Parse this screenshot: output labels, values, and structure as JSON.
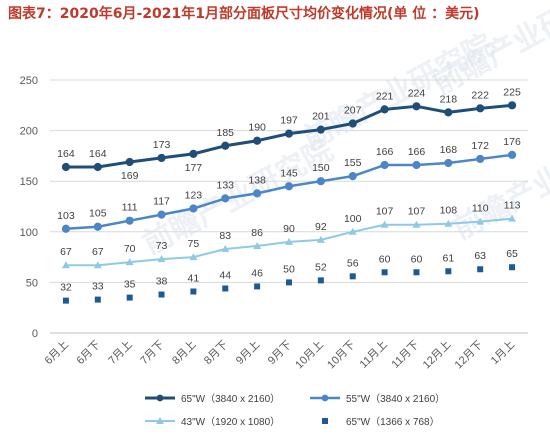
{
  "title": "图表7：2020年6月-2021年1月部分面板尺寸均价变化情况(单 位 ：美元)",
  "watermark": "前瞻产业研究院",
  "colors": {
    "series1": "#1f4e79",
    "series2": "#4a86c8",
    "series3": "#8ecae6",
    "series4": "#1c5a96",
    "grid": "#d9d9d9",
    "title": "#c0392b"
  },
  "chart_data": {
    "type": "line",
    "categories": [
      "6月上",
      "6月下",
      "7月上",
      "7月下",
      "8月上",
      "8月下",
      "9月上",
      "9月下",
      "10月上",
      "10月下",
      "11月上",
      "11月下",
      "12月上",
      "12月下",
      "1月上"
    ],
    "ylim": [
      0,
      250
    ],
    "yticks": [
      0,
      50,
      100,
      150,
      200,
      250
    ],
    "grid": true,
    "legend_position": "bottom",
    "series": [
      {
        "name": "65\"W（3840 x 2160）",
        "values": [
          164,
          164,
          169,
          173,
          177,
          185,
          190,
          197,
          201,
          207,
          221,
          224,
          218,
          222,
          225
        ],
        "marker": "circle"
      },
      {
        "name": "55\"W（3840 x 2160）",
        "values": [
          103,
          105,
          111,
          117,
          123,
          133,
          138,
          145,
          150,
          155,
          166,
          166,
          168,
          172,
          176
        ],
        "marker": "circle"
      },
      {
        "name": "43\"W（1920 x 1080）",
        "values": [
          67,
          67,
          70,
          73,
          75,
          83,
          86,
          90,
          92,
          100,
          107,
          107,
          108,
          110,
          113
        ],
        "marker": "triangle"
      },
      {
        "name": "65\"W（1366 x 768）",
        "values": [
          32,
          33,
          35,
          38,
          41,
          44,
          46,
          50,
          52,
          56,
          60,
          60,
          61,
          63,
          65
        ],
        "marker": "square"
      }
    ],
    "label_positions": {
      "0": [
        "above",
        "above",
        "below",
        "above",
        "below",
        "above",
        "above",
        "above",
        "above",
        "above",
        "above",
        "above",
        "above",
        "above",
        "above"
      ],
      "1": [
        "above",
        "above",
        "above",
        "above",
        "above",
        "above",
        "above",
        "above",
        "above",
        "above",
        "above",
        "above",
        "above",
        "above",
        "above"
      ],
      "2": [
        "above",
        "above",
        "above",
        "above",
        "above",
        "above",
        "above",
        "above",
        "above",
        "above",
        "above",
        "above",
        "above",
        "above",
        "above"
      ],
      "3": [
        "above",
        "above",
        "above",
        "above",
        "above",
        "above",
        "above",
        "above",
        "above",
        "above",
        "above",
        "above",
        "above",
        "above",
        "above"
      ]
    }
  }
}
